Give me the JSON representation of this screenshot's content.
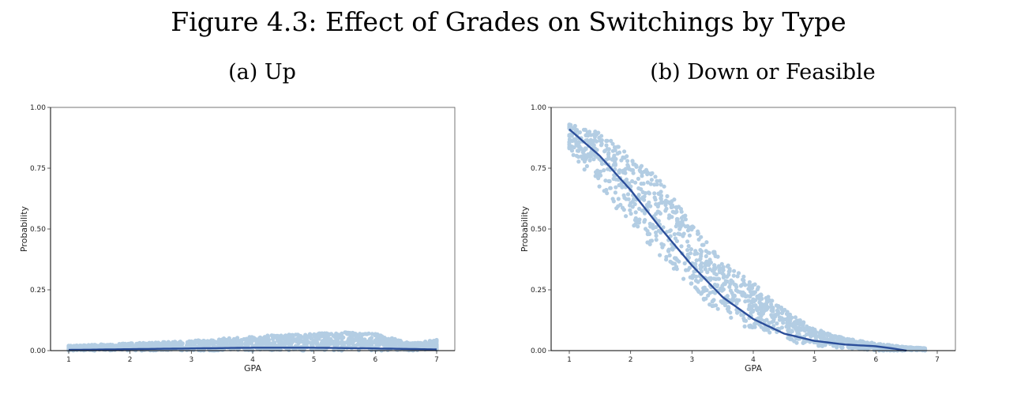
{
  "figure_title": "Figure 4.3: Effect of Grades on Switchings by Type",
  "colors": {
    "points": "#b3cde3",
    "line": "#2b4e9a",
    "axis": "#000000"
  },
  "chart_data": [
    {
      "type": "scatter",
      "subtitle": "(a) Up",
      "xlabel": "GPA",
      "ylabel": "Probability",
      "xlim": [
        1,
        7
      ],
      "ylim": [
        0,
        1
      ],
      "xticks": [
        "1",
        "2",
        "3",
        "4",
        "5",
        "6",
        "7"
      ],
      "yticks": [
        "0.00",
        "0.25",
        "0.50",
        "0.75",
        "1.00"
      ],
      "grid": false,
      "series": [
        {
          "role": "points",
          "band": {
            "x": [
              1.0,
              1.5,
              2.0,
              2.5,
              3.0,
              3.5,
              4.0,
              4.5,
              5.0,
              5.5,
              6.0,
              6.3,
              6.6,
              7.0
            ],
            "ymin": [
              0,
              0,
              0,
              0,
              0,
              0,
              0,
              0,
              0,
              0,
              0,
              0,
              0,
              0
            ],
            "ymax": [
              0.02,
              0.025,
              0.03,
              0.035,
              0.04,
              0.05,
              0.06,
              0.065,
              0.07,
              0.075,
              0.07,
              0.05,
              0.03,
              0.045
            ]
          }
        },
        {
          "role": "fitted-line",
          "x": [
            1.0,
            2.0,
            3.0,
            4.0,
            5.0,
            6.0,
            7.0
          ],
          "y": [
            0.003,
            0.006,
            0.009,
            0.012,
            0.012,
            0.009,
            0.005
          ]
        }
      ]
    },
    {
      "type": "scatter",
      "subtitle": "(b) Down or Feasible",
      "xlabel": "GPA",
      "ylabel": "Probability",
      "xlim": [
        1,
        7
      ],
      "ylim": [
        0,
        1
      ],
      "xticks": [
        "1",
        "2",
        "3",
        "4",
        "5",
        "6",
        "7"
      ],
      "yticks": [
        "0.00",
        "0.25",
        "0.50",
        "0.75",
        "1.00"
      ],
      "grid": false,
      "series": [
        {
          "role": "points",
          "band": {
            "x": [
              1.0,
              1.5,
              2.0,
              2.5,
              3.0,
              3.5,
              4.0,
              4.5,
              5.0,
              5.5,
              6.0,
              6.5,
              6.8
            ],
            "ymin": [
              0.82,
              0.66,
              0.52,
              0.38,
              0.25,
              0.14,
              0.08,
              0.04,
              0.02,
              0.01,
              0.0,
              0.0,
              0.0
            ],
            "ymax": [
              0.93,
              0.9,
              0.8,
              0.7,
              0.52,
              0.37,
              0.28,
              0.17,
              0.09,
              0.05,
              0.03,
              0.015,
              0.01
            ]
          }
        },
        {
          "role": "fitted-line",
          "x": [
            1.0,
            1.5,
            2.0,
            2.5,
            3.0,
            3.5,
            4.0,
            4.5,
            5.0,
            5.5,
            6.0,
            6.3,
            6.5
          ],
          "y": [
            0.91,
            0.8,
            0.66,
            0.5,
            0.35,
            0.22,
            0.13,
            0.07,
            0.04,
            0.025,
            0.018,
            0.008,
            0.0
          ]
        }
      ]
    }
  ]
}
